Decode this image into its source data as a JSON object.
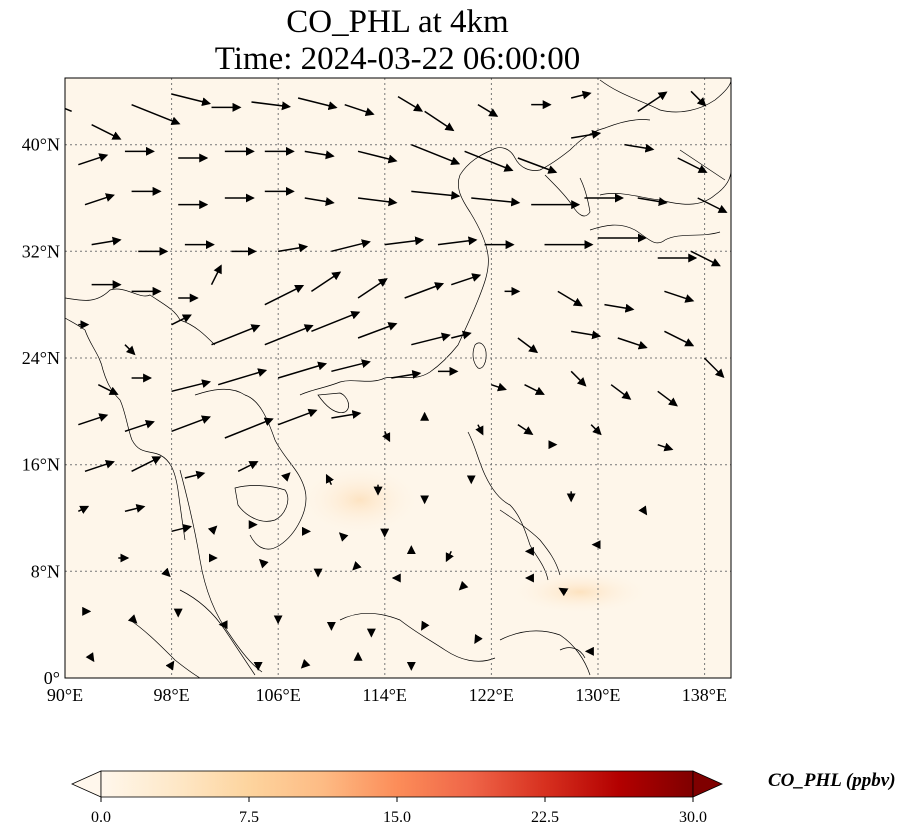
{
  "title": {
    "line1": "CO_PHL at 4km",
    "line2": "Time: 2024-03-22 06:00:00"
  },
  "map": {
    "projection": "PlateCarree",
    "lon_range": [
      90,
      140
    ],
    "lat_range": [
      0,
      45
    ],
    "lon_ticks": [
      90,
      98,
      106,
      114,
      122,
      130,
      138
    ],
    "lat_ticks": [
      0,
      8,
      16,
      24,
      32,
      40
    ],
    "lon_tick_labels": [
      "90°E",
      "98°E",
      "106°E",
      "114°E",
      "122°E",
      "130°E",
      "138°E"
    ],
    "lat_tick_labels": [
      "0°",
      "8°N",
      "16°N",
      "24°N",
      "32°N",
      "40°N"
    ],
    "gridlines": true,
    "field_color_note": "near-zero values, faint orange patches near 14°N 111°E and 7°N 129°E",
    "wind_vectors": true,
    "coastlines": true
  },
  "colorbar": {
    "label": "CO_PHL (ppbv)",
    "min": 0.0,
    "max": 30.0,
    "tick_labels": [
      "0.0",
      "7.5",
      "15.0",
      "22.5",
      "30.0"
    ],
    "tick_values": [
      0,
      7.5,
      15,
      22.5,
      30
    ],
    "colormap": "OrRd",
    "extend": "both",
    "colors": [
      "#fff7ec",
      "#fee8c8",
      "#fdd49e",
      "#fdbb84",
      "#fc8d59",
      "#ef6548",
      "#d7301f",
      "#b30000",
      "#7f0000"
    ]
  },
  "wind": [
    {
      "lon": 90.5,
      "lat": 42.5,
      "u": -6,
      "v": 2.5
    },
    {
      "lon": 92,
      "lat": 41.5,
      "u": 3,
      "v": -1.5
    },
    {
      "lon": 95,
      "lat": 43,
      "u": 5,
      "v": -2
    },
    {
      "lon": 98,
      "lat": 43.8,
      "u": 4,
      "v": -1
    },
    {
      "lon": 101,
      "lat": 42.8,
      "u": 3,
      "v": 0
    },
    {
      "lon": 104,
      "lat": 43.2,
      "u": 4,
      "v": -0.5
    },
    {
      "lon": 107.5,
      "lat": 43.5,
      "u": 4,
      "v": -1
    },
    {
      "lon": 111,
      "lat": 43,
      "u": 3,
      "v": -1
    },
    {
      "lon": 115,
      "lat": 43.6,
      "u": 2.5,
      "v": -1.5
    },
    {
      "lon": 117,
      "lat": 42.5,
      "u": 3,
      "v": -2
    },
    {
      "lon": 121,
      "lat": 43,
      "u": 2,
      "v": -1.2
    },
    {
      "lon": 125,
      "lat": 43,
      "u": 2,
      "v": 0
    },
    {
      "lon": 128,
      "lat": 43.5,
      "u": 2,
      "v": 0.5
    },
    {
      "lon": 133,
      "lat": 42.5,
      "u": 3,
      "v": 2
    },
    {
      "lon": 137,
      "lat": 44,
      "u": 1.5,
      "v": -1.5
    },
    {
      "lon": 91,
      "lat": 38.5,
      "u": 3,
      "v": 1
    },
    {
      "lon": 94.5,
      "lat": 39.5,
      "u": 3,
      "v": 0
    },
    {
      "lon": 98.5,
      "lat": 39,
      "u": 3,
      "v": 0
    },
    {
      "lon": 102,
      "lat": 39.5,
      "u": 3,
      "v": 0
    },
    {
      "lon": 105,
      "lat": 39.5,
      "u": 3,
      "v": 0
    },
    {
      "lon": 108,
      "lat": 39.5,
      "u": 3,
      "v": -0.5
    },
    {
      "lon": 112,
      "lat": 39.5,
      "u": 4,
      "v": -1
    },
    {
      "lon": 116,
      "lat": 40,
      "u": 5,
      "v": -2
    },
    {
      "lon": 120,
      "lat": 39.5,
      "u": 5,
      "v": -2
    },
    {
      "lon": 124,
      "lat": 39,
      "u": 4,
      "v": -1.5
    },
    {
      "lon": 128,
      "lat": 40.5,
      "u": 3,
      "v": 0.5
    },
    {
      "lon": 132,
      "lat": 40,
      "u": 3,
      "v": -0.5
    },
    {
      "lon": 136,
      "lat": 39,
      "u": 3,
      "v": -1.5
    },
    {
      "lon": 91.5,
      "lat": 35.5,
      "u": 3,
      "v": 1
    },
    {
      "lon": 95,
      "lat": 36.5,
      "u": 3,
      "v": 0
    },
    {
      "lon": 98.5,
      "lat": 35.5,
      "u": 3,
      "v": 0
    },
    {
      "lon": 102,
      "lat": 36,
      "u": 3,
      "v": 0
    },
    {
      "lon": 105,
      "lat": 36.5,
      "u": 3,
      "v": 0
    },
    {
      "lon": 108,
      "lat": 36,
      "u": 3,
      "v": -0.5
    },
    {
      "lon": 112,
      "lat": 36,
      "u": 4,
      "v": -0.5
    },
    {
      "lon": 116,
      "lat": 36.5,
      "u": 5,
      "v": -0.5
    },
    {
      "lon": 120.5,
      "lat": 36,
      "u": 5,
      "v": -0.5
    },
    {
      "lon": 125,
      "lat": 35.5,
      "u": 5,
      "v": 0
    },
    {
      "lon": 129,
      "lat": 36,
      "u": 4,
      "v": 0
    },
    {
      "lon": 133,
      "lat": 36,
      "u": 3,
      "v": -0.5
    },
    {
      "lon": 137.5,
      "lat": 36,
      "u": 3,
      "v": -1.5
    },
    {
      "lon": 92,
      "lat": 32.5,
      "u": 3,
      "v": 0.5
    },
    {
      "lon": 95.5,
      "lat": 32,
      "u": 3,
      "v": 0
    },
    {
      "lon": 99,
      "lat": 32.5,
      "u": 3,
      "v": 0
    },
    {
      "lon": 102.5,
      "lat": 32,
      "u": 2.5,
      "v": 0
    },
    {
      "lon": 106,
      "lat": 32,
      "u": 3,
      "v": 0.5
    },
    {
      "lon": 110,
      "lat": 32,
      "u": 4,
      "v": 1
    },
    {
      "lon": 114,
      "lat": 32.5,
      "u": 4,
      "v": 0.5
    },
    {
      "lon": 118,
      "lat": 32.5,
      "u": 4,
      "v": 0.5
    },
    {
      "lon": 121.5,
      "lat": 32.5,
      "u": 3,
      "v": 0
    },
    {
      "lon": 126,
      "lat": 32.5,
      "u": 5,
      "v": 0
    },
    {
      "lon": 130,
      "lat": 33,
      "u": 5,
      "v": 0
    },
    {
      "lon": 134.5,
      "lat": 31.5,
      "u": 4,
      "v": 0
    },
    {
      "lon": 137,
      "lat": 32,
      "u": 3,
      "v": -1.5
    },
    {
      "lon": 92,
      "lat": 29.5,
      "u": 3,
      "v": 0
    },
    {
      "lon": 95,
      "lat": 29,
      "u": 3,
      "v": 0
    },
    {
      "lon": 98.5,
      "lat": 28.5,
      "u": 2,
      "v": 0
    },
    {
      "lon": 101,
      "lat": 29.5,
      "u": 1,
      "v": 2
    },
    {
      "lon": 105,
      "lat": 28,
      "u": 4,
      "v": 2
    },
    {
      "lon": 108.5,
      "lat": 29,
      "u": 3,
      "v": 2
    },
    {
      "lon": 112,
      "lat": 28.5,
      "u": 3,
      "v": 2
    },
    {
      "lon": 115.5,
      "lat": 28.5,
      "u": 4,
      "v": 1.5
    },
    {
      "lon": 119,
      "lat": 29.5,
      "u": 3,
      "v": 1
    },
    {
      "lon": 123,
      "lat": 29,
      "u": 1.5,
      "v": 0
    },
    {
      "lon": 127,
      "lat": 29,
      "u": 2.5,
      "v": -1.5
    },
    {
      "lon": 130.5,
      "lat": 28,
      "u": 3,
      "v": -0.5
    },
    {
      "lon": 135,
      "lat": 29,
      "u": 3,
      "v": -1
    },
    {
      "lon": 91,
      "lat": 26.5,
      "u": 1,
      "v": 0
    },
    {
      "lon": 94.5,
      "lat": 25,
      "u": 1,
      "v": -1
    },
    {
      "lon": 98,
      "lat": 26.5,
      "u": 2,
      "v": 1
    },
    {
      "lon": 101,
      "lat": 25,
      "u": 5,
      "v": 2
    },
    {
      "lon": 105,
      "lat": 25,
      "u": 5,
      "v": 2
    },
    {
      "lon": 108.5,
      "lat": 26,
      "u": 5,
      "v": 2
    },
    {
      "lon": 112,
      "lat": 25.5,
      "u": 4,
      "v": 1.5
    },
    {
      "lon": 116,
      "lat": 25,
      "u": 4,
      "v": 1
    },
    {
      "lon": 119,
      "lat": 25.5,
      "u": 2,
      "v": 0.5
    },
    {
      "lon": 124,
      "lat": 25.5,
      "u": 2,
      "v": -1.5
    },
    {
      "lon": 128,
      "lat": 26,
      "u": 3,
      "v": -0.5
    },
    {
      "lon": 131.5,
      "lat": 25.5,
      "u": 3,
      "v": -1
    },
    {
      "lon": 135,
      "lat": 26,
      "u": 3,
      "v": -1.5
    },
    {
      "lon": 138,
      "lat": 24,
      "u": 2,
      "v": -2
    },
    {
      "lon": 92.5,
      "lat": 22,
      "u": 2,
      "v": -1
    },
    {
      "lon": 95,
      "lat": 22.5,
      "u": 2,
      "v": 0
    },
    {
      "lon": 98,
      "lat": 21.5,
      "u": 4,
      "v": 1
    },
    {
      "lon": 101.5,
      "lat": 22,
      "u": 5,
      "v": 1.5
    },
    {
      "lon": 106,
      "lat": 22.5,
      "u": 5,
      "v": 1.5
    },
    {
      "lon": 110,
      "lat": 23,
      "u": 4,
      "v": 1
    },
    {
      "lon": 114.5,
      "lat": 22.5,
      "u": 3,
      "v": 0.5
    },
    {
      "lon": 118,
      "lat": 23,
      "u": 2,
      "v": 0
    },
    {
      "lon": 122,
      "lat": 22,
      "u": 1.5,
      "v": -0.5
    },
    {
      "lon": 124.5,
      "lat": 22,
      "u": 2,
      "v": -1
    },
    {
      "lon": 128,
      "lat": 23,
      "u": 1.5,
      "v": -1.5
    },
    {
      "lon": 131,
      "lat": 22,
      "u": 2,
      "v": -1.5
    },
    {
      "lon": 134.5,
      "lat": 21.5,
      "u": 2,
      "v": -1.5
    },
    {
      "lon": 91,
      "lat": 19,
      "u": 3,
      "v": 1
    },
    {
      "lon": 94.5,
      "lat": 18.5,
      "u": 3,
      "v": 1
    },
    {
      "lon": 98,
      "lat": 18.5,
      "u": 4,
      "v": 1.5
    },
    {
      "lon": 102,
      "lat": 18,
      "u": 5,
      "v": 2
    },
    {
      "lon": 106,
      "lat": 19,
      "u": 4,
      "v": 1.5
    },
    {
      "lon": 110,
      "lat": 19.5,
      "u": 3,
      "v": 0.5
    },
    {
      "lon": 114,
      "lat": 18.5,
      "u": 0.5,
      "v": -1
    },
    {
      "lon": 117,
      "lat": 19.5,
      "u": 0,
      "v": 0.5
    },
    {
      "lon": 121,
      "lat": 19,
      "u": 0.5,
      "v": -1
    },
    {
      "lon": 124,
      "lat": 19,
      "u": 1.5,
      "v": -1
    },
    {
      "lon": 126.5,
      "lat": 17.5,
      "u": 0.5,
      "v": 0
    },
    {
      "lon": 129.5,
      "lat": 19,
      "u": 1,
      "v": -1
    },
    {
      "lon": 134.5,
      "lat": 17.5,
      "u": 1.5,
      "v": -0.5
    },
    {
      "lon": 91.5,
      "lat": 15.5,
      "u": 3,
      "v": 1
    },
    {
      "lon": 95,
      "lat": 15.5,
      "u": 3,
      "v": 1.5
    },
    {
      "lon": 99,
      "lat": 15,
      "u": 2,
      "v": 0.5
    },
    {
      "lon": 103,
      "lat": 15.5,
      "u": 2,
      "v": 1
    },
    {
      "lon": 106.5,
      "lat": 15,
      "u": 0.5,
      "v": 0.5
    },
    {
      "lon": 110,
      "lat": 14.5,
      "u": -0.5,
      "v": 1
    },
    {
      "lon": 113.5,
      "lat": 14.5,
      "u": 0,
      "v": -1
    },
    {
      "lon": 117,
      "lat": 13.5,
      "u": 0,
      "v": -0.5
    },
    {
      "lon": 120.5,
      "lat": 15,
      "u": 0,
      "v": -0.5
    },
    {
      "lon": 128,
      "lat": 14,
      "u": 0,
      "v": -1
    },
    {
      "lon": 133.5,
      "lat": 12.5,
      "u": 0.2,
      "v": -0.3
    },
    {
      "lon": 91,
      "lat": 12.5,
      "u": 1,
      "v": 0.5
    },
    {
      "lon": 94.5,
      "lat": 12.5,
      "u": 2,
      "v": 0.5
    },
    {
      "lon": 98,
      "lat": 11,
      "u": 2,
      "v": 0.5
    },
    {
      "lon": 101,
      "lat": 11,
      "u": 0.5,
      "v": 0.5
    },
    {
      "lon": 104,
      "lat": 11.5,
      "u": 0.5,
      "v": 0
    },
    {
      "lon": 108,
      "lat": 11,
      "u": 0.5,
      "v": 0
    },
    {
      "lon": 111,
      "lat": 10.5,
      "u": -0.5,
      "v": 0.5
    },
    {
      "lon": 114,
      "lat": 11,
      "u": 0,
      "v": -0.5
    },
    {
      "lon": 116,
      "lat": 9.5,
      "u": 0,
      "v": 0.5
    },
    {
      "lon": 119,
      "lat": 9.5,
      "u": -0.5,
      "v": -1
    },
    {
      "lon": 125,
      "lat": 9.5,
      "u": -0.5,
      "v": 0
    },
    {
      "lon": 130,
      "lat": 10,
      "u": -0.5,
      "v": 0
    },
    {
      "lon": 94,
      "lat": 9,
      "u": 1,
      "v": 0
    },
    {
      "lon": 97.5,
      "lat": 8,
      "u": 0.5,
      "v": -0.5
    },
    {
      "lon": 101,
      "lat": 9,
      "u": 0.5,
      "v": 0
    },
    {
      "lon": 105,
      "lat": 8.5,
      "u": -0.5,
      "v": 0.5
    },
    {
      "lon": 109,
      "lat": 8,
      "u": 0,
      "v": -0.5
    },
    {
      "lon": 112,
      "lat": 8.5,
      "u": -0.5,
      "v": -0.5
    },
    {
      "lon": 115,
      "lat": 7.5,
      "u": -0.5,
      "v": 0
    },
    {
      "lon": 120,
      "lat": 7,
      "u": -0.5,
      "v": -0.5
    },
    {
      "lon": 125,
      "lat": 7.5,
      "u": -0.5,
      "v": 0
    },
    {
      "lon": 127.5,
      "lat": 6.5,
      "u": -0.5,
      "v": 0.3
    },
    {
      "lon": 91.5,
      "lat": 5,
      "u": 0.5,
      "v": 0
    },
    {
      "lon": 95,
      "lat": 4.5,
      "u": 0.5,
      "v": -0.5
    },
    {
      "lon": 98.5,
      "lat": 5,
      "u": 0,
      "v": -0.5
    },
    {
      "lon": 102,
      "lat": 4,
      "u": -0.5,
      "v": 0
    },
    {
      "lon": 106,
      "lat": 4.5,
      "u": 0,
      "v": -0.5
    },
    {
      "lon": 110,
      "lat": 4,
      "u": 0,
      "v": -0.5
    },
    {
      "lon": 113,
      "lat": 3.5,
      "u": 0,
      "v": -0.5
    },
    {
      "lon": 117,
      "lat": 4,
      "u": -0.3,
      "v": -0.5
    },
    {
      "lon": 121,
      "lat": 3,
      "u": -0.3,
      "v": -0.5
    },
    {
      "lon": 129.5,
      "lat": 2,
      "u": -0.5,
      "v": 0
    },
    {
      "lon": 92,
      "lat": 1.5,
      "u": 0.2,
      "v": -0.3
    },
    {
      "lon": 98,
      "lat": 1,
      "u": 0.2,
      "v": 0.3
    },
    {
      "lon": 104.5,
      "lat": 1,
      "u": 0,
      "v": -0.5
    },
    {
      "lon": 108,
      "lat": 1,
      "u": -0.3,
      "v": -0.3
    },
    {
      "lon": 112,
      "lat": 1.5,
      "u": 0,
      "v": 0.5
    },
    {
      "lon": 116,
      "lat": 1,
      "u": 0,
      "v": -0.5
    }
  ]
}
